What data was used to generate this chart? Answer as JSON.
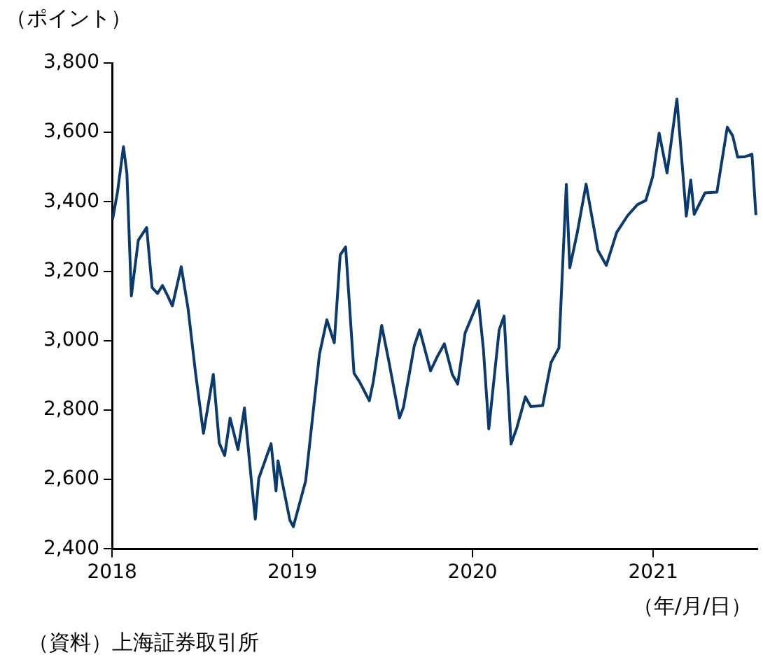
{
  "chart_data": {
    "type": "line",
    "ylabel": "（ポイント）",
    "xlabel": "（年/月/日）",
    "annotations": [
      "（資料）上海証券取引所"
    ],
    "xlim": [
      "2018-01-01",
      "2021-07-31"
    ],
    "xticks": [
      "2018",
      "2019",
      "2020",
      "2021"
    ],
    "ylim": [
      2400,
      3800
    ],
    "yticks": [
      {
        "value": 2400,
        "label": "2,400"
      },
      {
        "value": 2600,
        "label": "2,600"
      },
      {
        "value": 2800,
        "label": "2,800"
      },
      {
        "value": 3000,
        "label": "3,000"
      },
      {
        "value": 3200,
        "label": "3,200"
      },
      {
        "value": 3400,
        "label": "3,400"
      },
      {
        "value": 3600,
        "label": "3,600"
      },
      {
        "value": 3800,
        "label": "3,800"
      }
    ],
    "grid": false,
    "legend": false,
    "marker": "none",
    "line_style": "solid",
    "series": [
      {
        "color": "#0b3a6e",
        "x": [
          "2018-01-02",
          "2018-01-12",
          "2018-01-24",
          "2018-01-31",
          "2018-02-09",
          "2018-02-23",
          "2018-03-12",
          "2018-03-23",
          "2018-04-03",
          "2018-04-13",
          "2018-04-24",
          "2018-05-03",
          "2018-05-21",
          "2018-06-04",
          "2018-06-19",
          "2018-07-05",
          "2018-07-25",
          "2018-08-06",
          "2018-08-17",
          "2018-08-28",
          "2018-09-13",
          "2018-09-26",
          "2018-10-11",
          "2018-10-18",
          "2018-10-25",
          "2018-11-19",
          "2018-11-29",
          "2018-12-03",
          "2018-12-27",
          "2019-01-03",
          "2019-01-28",
          "2019-02-25",
          "2019-03-12",
          "2019-03-27",
          "2019-04-08",
          "2019-04-19",
          "2019-05-06",
          "2019-05-17",
          "2019-06-06",
          "2019-06-14",
          "2019-07-01",
          "2019-07-16",
          "2019-08-06",
          "2019-08-14",
          "2019-09-05",
          "2019-09-16",
          "2019-10-08",
          "2019-10-22",
          "2019-11-05",
          "2019-11-21",
          "2019-12-02",
          "2019-12-17",
          "2020-01-13",
          "2020-01-23",
          "2020-02-03",
          "2020-02-24",
          "2020-03-05",
          "2020-03-19",
          "2020-03-31",
          "2020-04-17",
          "2020-04-28",
          "2020-05-22",
          "2020-06-08",
          "2020-06-24",
          "2020-07-09",
          "2020-07-16",
          "2020-07-31",
          "2020-08-18",
          "2020-09-11",
          "2020-09-28",
          "2020-10-19",
          "2020-11-10",
          "2020-11-30",
          "2020-12-17",
          "2020-12-31",
          "2021-01-13",
          "2021-01-29",
          "2021-02-18",
          "2021-03-09",
          "2021-03-18",
          "2021-03-25",
          "2021-04-16",
          "2021-05-10",
          "2021-05-31",
          "2021-06-11",
          "2021-06-21",
          "2021-07-06",
          "2021-07-20",
          "2021-07-28"
        ],
        "values": [
          3349,
          3429,
          3559,
          3481,
          3129,
          3289,
          3326,
          3153,
          3136,
          3159,
          3128,
          3100,
          3213,
          3091,
          2907,
          2733,
          2903,
          2705,
          2669,
          2777,
          2686,
          2806,
          2583,
          2486,
          2603,
          2703,
          2567,
          2654,
          2483,
          2464,
          2596,
          2961,
          3060,
          2994,
          3247,
          3270,
          2906,
          2882,
          2827,
          2882,
          3044,
          2937,
          2777,
          2808,
          2985,
          3031,
          2913,
          2955,
          2991,
          2903,
          2875,
          3022,
          3115,
          2976,
          2746,
          3031,
          3071,
          2702,
          2750,
          2838,
          2810,
          2813,
          2937,
          2979,
          3450,
          3210,
          3310,
          3451,
          3260,
          3217,
          3312,
          3360,
          3392,
          3404,
          3473,
          3598,
          3483,
          3696,
          3359,
          3463,
          3364,
          3426,
          3428,
          3615,
          3590,
          3529,
          3530,
          3537,
          3362
        ]
      }
    ]
  }
}
